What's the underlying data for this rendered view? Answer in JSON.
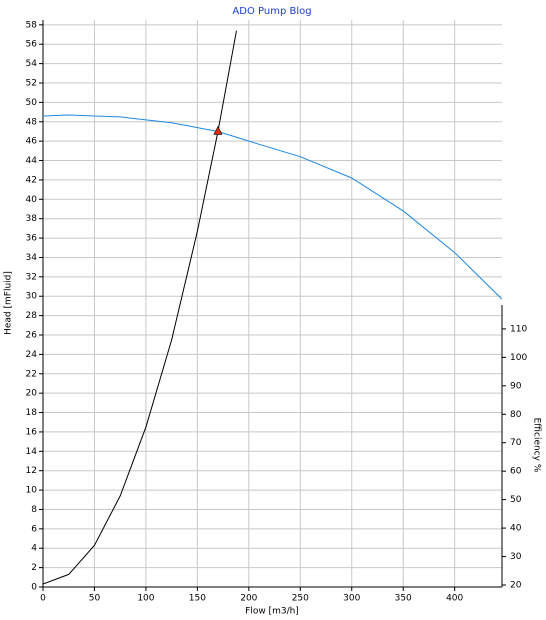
{
  "chart_data": {
    "type": "line",
    "title": "ADO Pump Blog",
    "x_label": "Flow [m3/h]",
    "y_label": "Head [mFluid]",
    "y2_label": "Efficiency %",
    "xlim": [
      0,
      446
    ],
    "ylim": [
      0,
      58.5
    ],
    "y2lim": [
      19.3,
      118.4
    ],
    "xticks": [
      0,
      50,
      100,
      150,
      200,
      250,
      300,
      350,
      400
    ],
    "yticks": [
      0,
      2,
      4,
      6,
      8,
      10,
      12,
      14,
      16,
      18,
      20,
      22,
      24,
      26,
      28,
      30,
      32,
      34,
      36,
      38,
      40,
      42,
      44,
      46,
      48,
      50,
      52,
      54,
      56,
      58
    ],
    "y2ticks": [
      20,
      30,
      40,
      50,
      60,
      70,
      80,
      90,
      100,
      110
    ],
    "grid": true,
    "series": [
      {
        "color": "#1e88e5",
        "x": [
          0,
          25,
          50,
          75,
          100,
          125,
          150,
          170,
          200,
          250,
          300,
          350,
          400,
          446
        ],
        "values": [
          48.6,
          48.7,
          48.6,
          48.5,
          48.2,
          47.9,
          47.4,
          47,
          46,
          44.4,
          42.2,
          38.8,
          34.5,
          29.7
        ]
      },
      {
        "color": "#000000",
        "x": [
          0,
          25,
          50,
          75,
          100,
          125,
          150,
          170,
          188
        ],
        "values": [
          0.3,
          1.3,
          4.3,
          9.4,
          16.5,
          25.5,
          36.7,
          47,
          57.4
        ]
      }
    ],
    "operating_point": {
      "x": 170,
      "y": 47,
      "color": "#e03010"
    }
  }
}
